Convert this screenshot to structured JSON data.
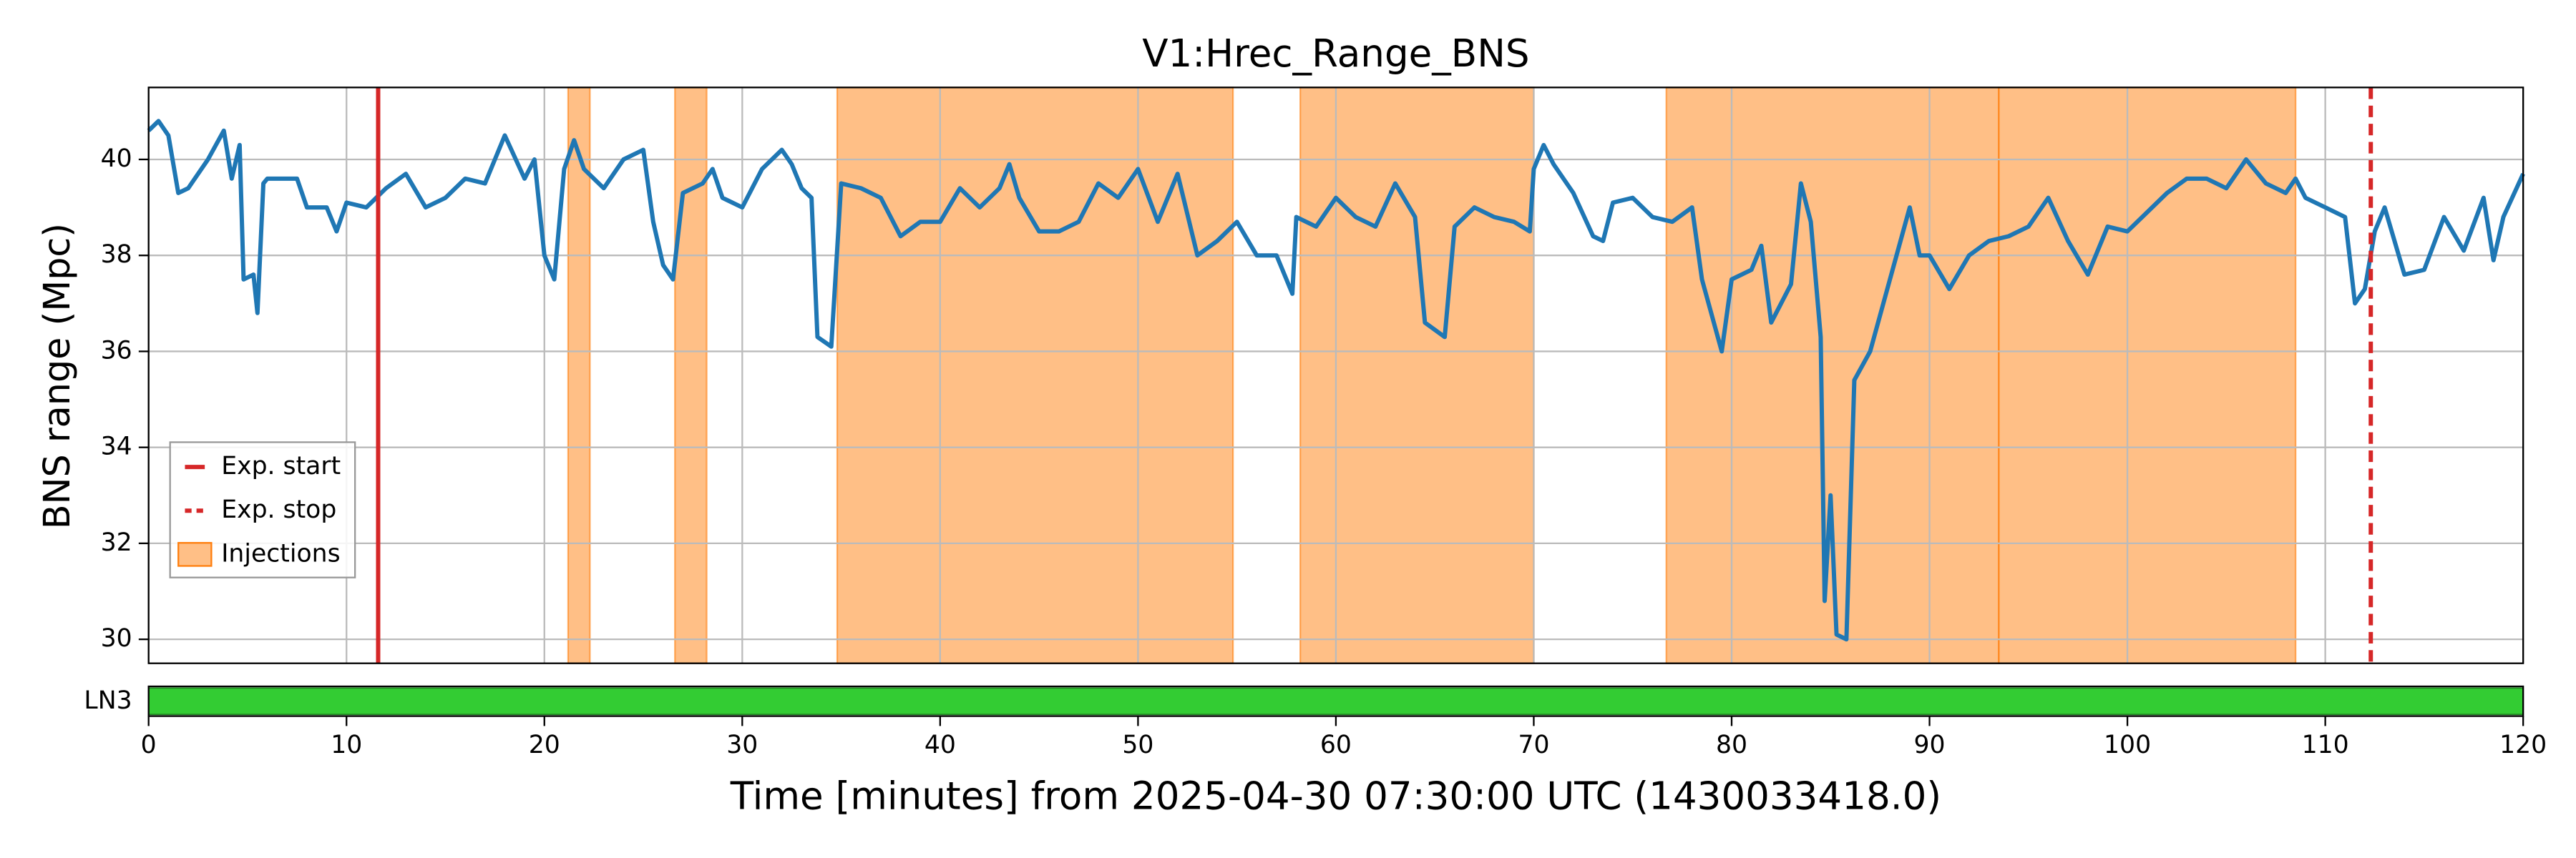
{
  "chart_data": [
    {
      "type": "line",
      "title": "V1:Hrec_Range_BNS",
      "ylabel": "BNS range (Mpc)",
      "xlim": [
        0,
        120
      ],
      "xticks": [
        0,
        10,
        20,
        30,
        40,
        50,
        60,
        70,
        80,
        90,
        100,
        110,
        120
      ],
      "ylim": [
        29.5,
        41.5
      ],
      "yticks": [
        30,
        32,
        34,
        36,
        38,
        40
      ],
      "grid": true,
      "legend": "lower left",
      "x": [
        0,
        0.5,
        1,
        1.5,
        2,
        3,
        3.8,
        4.2,
        4.6,
        4.8,
        5.3,
        5.5,
        5.8,
        6,
        7,
        7.5,
        8,
        9,
        9.5,
        10,
        11,
        11.5,
        12,
        13,
        14,
        15,
        16,
        17,
        18,
        19,
        19.5,
        20,
        20.5,
        21,
        21.5,
        22,
        23,
        24,
        25,
        25.5,
        26,
        26.5,
        27,
        28,
        28.5,
        29,
        30,
        31,
        32,
        32.5,
        33,
        33.5,
        33.8,
        34.5,
        35,
        36,
        37,
        38,
        39,
        40,
        41,
        42,
        43,
        43.5,
        44,
        45,
        46,
        47,
        48,
        49,
        50,
        51,
        52,
        53,
        54,
        55,
        56,
        57,
        57.8,
        58,
        59,
        60,
        61,
        62,
        63,
        64,
        64.5,
        65.5,
        66,
        67,
        68,
        69,
        69.8,
        70,
        70.5,
        71,
        72,
        73,
        73.5,
        74,
        75,
        76,
        77,
        78,
        78.5,
        79.5,
        80,
        81,
        81.5,
        82,
        83,
        83.5,
        84,
        84.5,
        84.7,
        85,
        85.3,
        85.8,
        86.2,
        87,
        88,
        89,
        89.5,
        90,
        91,
        92,
        93,
        94,
        95,
        96,
        97,
        98,
        99,
        100,
        101,
        102,
        103,
        104,
        105,
        106,
        107,
        108,
        108.5,
        109,
        110,
        111,
        111.5,
        112,
        112.5,
        113,
        114,
        115,
        116,
        117,
        118,
        118.5,
        119,
        120
      ],
      "series": [
        {
          "name": "V1:Hrec_Range_BNS",
          "color": "#1f77b4",
          "values": [
            40.6,
            40.8,
            40.5,
            39.3,
            39.4,
            40.0,
            40.6,
            39.6,
            40.3,
            37.5,
            37.6,
            36.8,
            39.5,
            39.6,
            39.6,
            39.6,
            39.0,
            39.0,
            38.5,
            39.1,
            39.0,
            39.2,
            39.4,
            39.7,
            39.0,
            39.2,
            39.6,
            39.5,
            40.5,
            39.6,
            40.0,
            38.0,
            37.5,
            39.8,
            40.4,
            39.8,
            39.4,
            40.0,
            40.2,
            38.7,
            37.8,
            37.5,
            39.3,
            39.5,
            39.8,
            39.2,
            39.0,
            39.8,
            40.2,
            39.9,
            39.4,
            39.2,
            36.3,
            36.1,
            39.5,
            39.4,
            39.2,
            38.4,
            38.7,
            38.7,
            39.4,
            39.0,
            39.4,
            39.9,
            39.2,
            38.5,
            38.5,
            38.7,
            39.5,
            39.2,
            39.8,
            38.7,
            39.7,
            38.0,
            38.3,
            38.7,
            38.0,
            38.0,
            37.2,
            38.8,
            38.6,
            39.2,
            38.8,
            38.6,
            39.5,
            38.8,
            36.6,
            36.3,
            38.6,
            39.0,
            38.8,
            38.7,
            38.5,
            39.8,
            40.3,
            39.9,
            39.3,
            38.4,
            38.3,
            39.1,
            39.2,
            38.8,
            38.7,
            39.0,
            37.5,
            36.0,
            37.5,
            37.7,
            38.2,
            36.6,
            37.4,
            39.5,
            38.7,
            36.3,
            30.8,
            33.0,
            30.1,
            30.0,
            35.4,
            36.0,
            37.5,
            39.0,
            38.0,
            38.0,
            37.3,
            38.0,
            38.3,
            38.4,
            38.6,
            39.2,
            38.3,
            37.6,
            38.6,
            38.5,
            38.9,
            39.3,
            39.6,
            39.6,
            39.4,
            40.0,
            39.5,
            39.3,
            39.6,
            39.2,
            39.0,
            38.8,
            37.0,
            37.3,
            38.5,
            39.0,
            37.6,
            37.7,
            38.8,
            38.1,
            39.2,
            37.9,
            38.8,
            39.7
          ]
        }
      ],
      "vlines": [
        {
          "name": "Exp. start",
          "x": 11.6,
          "color": "#d62728",
          "dashed": false
        },
        {
          "name": "Exp. stop",
          "x": 112.3,
          "color": "#d62728",
          "dashed": true
        }
      ],
      "spans": {
        "name": "Injections",
        "color": "#ff7f0e",
        "ranges": [
          [
            21.2,
            22.3
          ],
          [
            26.6,
            28.2
          ],
          [
            34.8,
            54.8
          ],
          [
            58.2,
            70.0
          ],
          [
            76.7,
            93.5
          ],
          [
            93.5,
            108.5
          ]
        ]
      }
    },
    {
      "type": "segments",
      "categories": [
        "LN3"
      ],
      "segments": [
        [
          [
            0,
            120
          ]
        ]
      ],
      "color": "#33cc33",
      "xlim": [
        0,
        120
      ],
      "xticks": [
        0,
        10,
        20,
        30,
        40,
        50,
        60,
        70,
        80,
        90,
        100,
        110,
        120
      ],
      "xlabel": "Time [minutes] from 2025-04-30 07:30:00 UTC (1430033418.0)"
    }
  ]
}
